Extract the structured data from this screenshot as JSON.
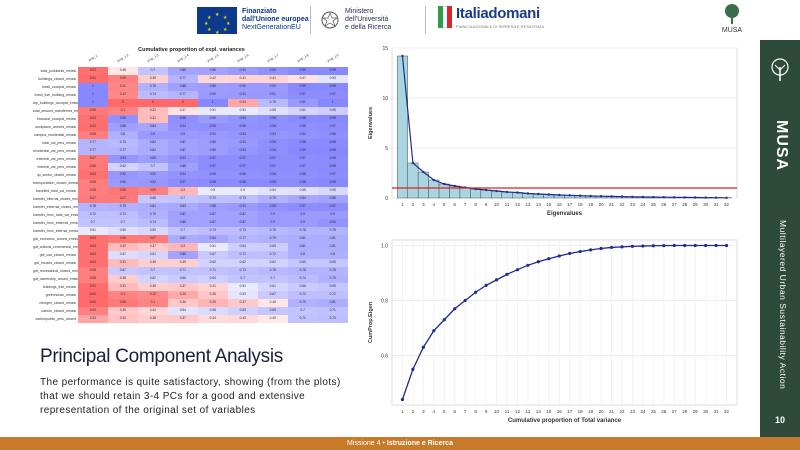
{
  "header": {
    "eu_line1": "Finanziato",
    "eu_line2": "dall'Unione europea",
    "eu_line3": "NextGenerationEU",
    "ministry_line1": "Ministero",
    "ministry_line2": "dell'Università",
    "ministry_line3": "e della Ricerca",
    "italia_word": "Italiadomani",
    "italia_sub": "PIANO NAZIONALE DI RIPRESA E RESILIENZA",
    "musa_small": "MUSA"
  },
  "sidebar": {
    "brand": "MUSA",
    "vertical_text": "Multilayered Urban Sustainability Action",
    "page_number": "10"
  },
  "slide": {
    "title": "Principal Component Analysis",
    "body": "The performance is quite satisfactory, showing (from the plots) that we should retain 3-4 PCs for a good and extensive representation of the original set of variables"
  },
  "footer": {
    "prefix": "Missione 4 • ",
    "bold": "Istruzione e Ricerca"
  },
  "heatmap": {
    "title": "Cumulative proportion of expl. variances",
    "columns": [
      "prop_1",
      "prop_1:2",
      "prop_1:3",
      "prop_1:4",
      "prop_1:5",
      "prop_1:6",
      "prop_1:7",
      "prop_1:8",
      "prop_1:9"
    ],
    "rows": [
      {
        "label": "total_pollutants_emissi",
        "values": [
          "0.03",
          "0.48",
          "0.7",
          "0.85",
          "0.86",
          "0.91",
          "0.95",
          "0.99",
          "0.99"
        ]
      },
      {
        "label": "buildings_closed_emissi",
        "values": [
          "0.01",
          "0.09",
          "0.39",
          "0.77",
          "0.42",
          "0.41",
          "0.41",
          "0.47",
          "0.53"
        ]
      },
      {
        "label": "fossil_occupat_emissi",
        "values": [
          "1",
          "0.11",
          "0.79",
          "0.88",
          "0.89",
          "0.90",
          "0.90",
          "0.99",
          "0.99"
        ]
      },
      {
        "label": "fossil_fuel_building_emissi",
        "values": [
          "1",
          "0.12",
          "0.74",
          "0.77",
          "0.90",
          "0.91",
          "0.91",
          "0.97",
          "0.97"
        ]
      },
      {
        "label": "top_buildings_occupat_emissi",
        "values": [
          "1",
          "0",
          "0",
          "0",
          "1",
          "0.24",
          "0.75",
          "0.91",
          "1"
        ]
      },
      {
        "label": "total_amount_transferred_emissi",
        "values": [
          "0.06",
          "0.1",
          "0.32",
          "0.47",
          "0.51",
          "0.51",
          "0.55",
          "0.61",
          "0.65"
        ]
      },
      {
        "label": "financial_occupat_emissi",
        "values": [
          "0.03",
          "0.95",
          "0.31",
          "0.96",
          "0.90",
          "0.94",
          "0.96",
          "0.98",
          "0.99"
        ]
      },
      {
        "label": "workplace_worked_emissi",
        "values": [
          "0.02",
          "0.88",
          "0.84",
          "0.94",
          "0.96",
          "0.95",
          "0.96",
          "0.96",
          "0.97"
        ]
      },
      {
        "label": "campus_residential_emissi",
        "values": [
          "0.08",
          "0.8",
          "0.9",
          "0.9",
          "0.91",
          "0.93",
          "0.93",
          "0.94",
          "0.96"
        ]
      },
      {
        "label": "total_val_pers_emissi",
        "values": [
          "0.77",
          "0.75",
          "0.82",
          "0.87",
          "0.89",
          "0.91",
          "0.96",
          "0.98",
          "0.98"
        ]
      },
      {
        "label": "residential_val_pers_emissi",
        "values": [
          "0.77",
          "0.77",
          "0.82",
          "0.87",
          "0.89",
          "0.93",
          "0.96",
          "0.99",
          "0.99"
        ]
      },
      {
        "label": "external_val_pers_emissi",
        "values": [
          "0.07",
          "0.93",
          "0.89",
          "0.93",
          "0.97",
          "0.97",
          "0.97",
          "0.97",
          "0.98"
        ]
      },
      {
        "label": "internal_val_pers_emissi",
        "values": [
          "0.06",
          "0.62",
          "0.7",
          "0.88",
          "0.97",
          "0.97",
          "0.97",
          "0.97",
          "0.98"
        ]
      },
      {
        "label": "ipi_sector_closed_emissi",
        "values": [
          "0.03",
          "0.92",
          "0.90",
          "0.94",
          "0.95",
          "0.95",
          "0.96",
          "0.96",
          "0.97"
        ]
      },
      {
        "label": "transportation_closed_emissi",
        "values": [
          "0.08",
          "0.90",
          "0.92",
          "0.97",
          "0.98",
          "0.98",
          "0.98",
          "0.98",
          "0.99"
        ]
      },
      {
        "label": "travelled_total_val_emissi",
        "values": [
          "0.08",
          "0.05",
          "0.09",
          "0.3",
          "0.5",
          "0.5",
          "0.54",
          "0.55",
          "0.59"
        ]
      },
      {
        "label": "transfer_internal_closed_emissi",
        "values": [
          "0.07",
          "0.07",
          "0.68",
          "0.7",
          "0.72",
          "0.73",
          "0.79",
          "0.84",
          "0.86"
        ]
      },
      {
        "label": "transfer_external_closed_emissi",
        "values": [
          "0.78",
          "0.79",
          "0.81",
          "0.83",
          "0.88",
          "0.91",
          "0.95",
          "0.97",
          "0.97"
        ]
      },
      {
        "label": "transfer_from_total_val_emissi",
        "values": [
          "0.72",
          "0.72",
          "0.79",
          "0.87",
          "0.87",
          "0.87",
          "0.9",
          "0.9",
          "0.9"
        ]
      },
      {
        "label": "transfer_from_external_emissi",
        "values": [
          "0.7",
          "0.7",
          "0.74",
          "0.86",
          "0.87",
          "0.87",
          "0.9",
          "0.9",
          "0.94"
        ]
      },
      {
        "label": "transfer_from_internal_emissi",
        "values": [
          "0.51",
          "0.56",
          "0.59",
          "0.7",
          "0.73",
          "0.73",
          "0.75",
          "0.78",
          "0.78"
        ]
      },
      {
        "label": "gdt_economic_closed_emissi",
        "values": [
          "0.03",
          "0.06",
          "0.07",
          "0.82",
          "0.84",
          "0.77",
          "0.79",
          "0.81",
          "0.81"
        ]
      },
      {
        "label": "gdt_cultural_commercial_emissi",
        "values": [
          "0.03",
          "0.32",
          "0.37",
          "0.3",
          "0.51",
          "0.64",
          "0.65",
          "0.81",
          "0.81"
        ]
      },
      {
        "label": "gdt_use_closed_emissi",
        "values": [
          "0.03",
          "0.57",
          "0.61",
          "0.86",
          "0.67",
          "0.72",
          "0.72",
          "0.8",
          "0.8"
        ]
      },
      {
        "label": "gdt_houses_closed_emissi",
        "values": [
          "0.03",
          "0.31",
          "0.39",
          "0.39",
          "0.62",
          "0.62",
          "0.62",
          "0.69",
          "0.69"
        ]
      },
      {
        "label": "gdt_recreational_closed_emissi",
        "values": [
          "0.08",
          "0.67",
          "0.7",
          "0.71",
          "0.71",
          "0.73",
          "0.75",
          "0.78",
          "0.78"
        ]
      },
      {
        "label": "gdt_ownership_closed_emissi",
        "values": [
          "0.08",
          "0.38",
          "0.62",
          "0.66",
          "0.64",
          "0.7",
          "0.7",
          "0.74",
          "0.79"
        ]
      },
      {
        "label": "buildings_fuel_emissi",
        "values": [
          "0.01",
          "0.31",
          "0.39",
          "0.37",
          "0.41",
          "0.51",
          "0.61",
          "0.66",
          "0.69"
        ]
      },
      {
        "label": "greenhouse_emissi",
        "values": [
          "0.00",
          "0.1",
          "0.12",
          "0.25",
          "0.36",
          "0.53",
          "0.67",
          "0.72",
          "0.72"
        ]
      },
      {
        "label": "nitrogen_closed_emissi",
        "values": [
          "0.00",
          "0.06",
          "0.1",
          "0.36",
          "0.29",
          "0.37",
          "0.48",
          "0.79",
          "0.81"
        ]
      },
      {
        "label": "carbon_closed_emissi",
        "values": [
          "0.09",
          "0.36",
          "0.42",
          "0.54",
          "0.58",
          "0.63",
          "0.69",
          "0.7",
          "0.71"
        ]
      },
      {
        "label": "carbonpublic_pers_closed",
        "values": [
          "0.23",
          "0.34",
          "0.38",
          "0.37",
          "0.44",
          "0.43",
          "0.49",
          "0.71",
          "0.73"
        ]
      }
    ]
  },
  "chart_data": [
    {
      "type": "bar",
      "xlabel": "Eigenvalues",
      "ylabel": "Eigenvalues",
      "categories": [
        "1",
        "2",
        "3",
        "4",
        "5",
        "6",
        "7",
        "8",
        "9",
        "10",
        "11",
        "12",
        "13",
        "14",
        "15",
        "16",
        "17",
        "18",
        "19",
        "20",
        "21",
        "22",
        "23",
        "24",
        "25",
        "26",
        "27",
        "28",
        "29",
        "30",
        "31",
        "32"
      ],
      "values": [
        14.2,
        3.5,
        2.6,
        1.8,
        1.4,
        1.2,
        1.05,
        0.9,
        0.8,
        0.7,
        0.6,
        0.55,
        0.45,
        0.4,
        0.35,
        0.3,
        0.27,
        0.23,
        0.2,
        0.18,
        0.16,
        0.14,
        0.12,
        0.1,
        0.09,
        0.08,
        0.07,
        0.06,
        0.05,
        0.04,
        0.03,
        0.02
      ],
      "reference_line": 1,
      "ylim": [
        0,
        15
      ],
      "yticks": [
        "0",
        "5",
        "10",
        "15"
      ],
      "colors": {
        "bar": "#a9d4e0",
        "line": "#1f2d8c",
        "ref": "#e22020"
      }
    },
    {
      "type": "line",
      "xlabel": "Cumulative proportion of Total variance",
      "ylabel": "CumProp.Eigen",
      "x": [
        1,
        2,
        3,
        4,
        5,
        6,
        7,
        8,
        9,
        10,
        11,
        12,
        13,
        14,
        15,
        16,
        17,
        18,
        19,
        20,
        21,
        22,
        23,
        24,
        25,
        26,
        27,
        28,
        29,
        30,
        31,
        32
      ],
      "y": [
        0.44,
        0.55,
        0.63,
        0.69,
        0.73,
        0.77,
        0.8,
        0.83,
        0.855,
        0.875,
        0.895,
        0.912,
        0.928,
        0.941,
        0.952,
        0.962,
        0.971,
        0.978,
        0.984,
        0.989,
        0.993,
        0.995,
        0.997,
        0.998,
        0.999,
        0.9995,
        1,
        1,
        1,
        1,
        1,
        1
      ],
      "ylim": [
        0.42,
        1.02
      ],
      "yticks": [
        "0.6",
        "0.8",
        "1.0"
      ],
      "colors": {
        "line": "#1f2d8c"
      }
    }
  ]
}
